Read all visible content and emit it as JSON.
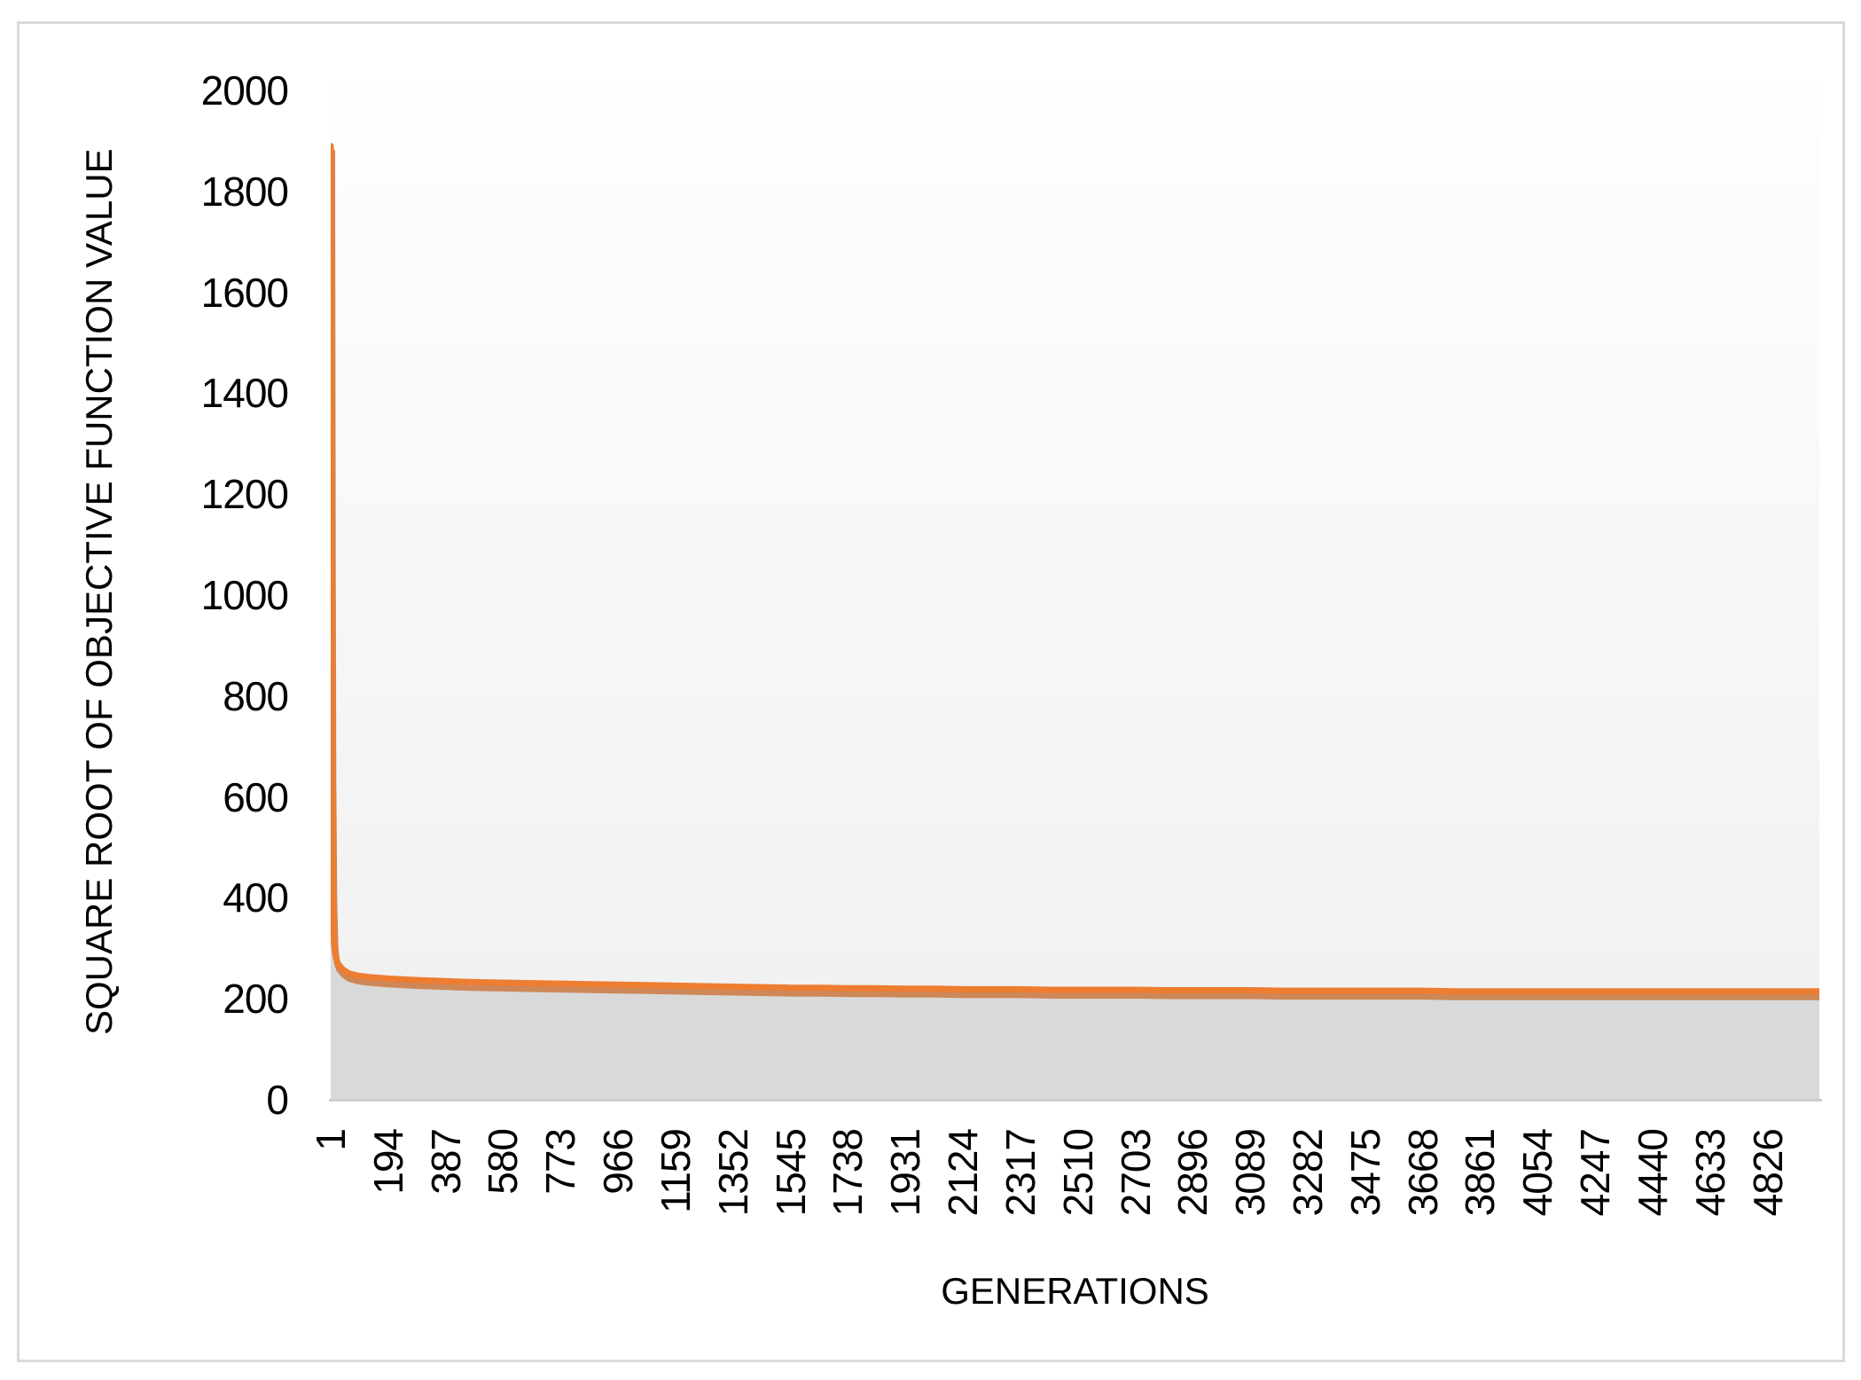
{
  "chart_data": {
    "type": "line",
    "title": "",
    "xlabel": "GENERATIONS",
    "ylabel": "SQUARE ROOT OF OBJECTIVE FUNCTION VALUE",
    "xlim": [
      1,
      5000
    ],
    "ylim": [
      0,
      2000
    ],
    "grid": false,
    "legend_position": "none",
    "x_ticks": [
      1,
      194,
      387,
      580,
      773,
      966,
      1159,
      1352,
      1545,
      1738,
      1931,
      2124,
      2317,
      2510,
      2703,
      2896,
      3089,
      3282,
      3475,
      3668,
      3861,
      4054,
      4247,
      4440,
      4633,
      4826
    ],
    "y_ticks": [
      0,
      200,
      400,
      600,
      800,
      1000,
      1200,
      1400,
      1600,
      1800,
      2000
    ],
    "series": [
      {
        "name": "square-root-of-objective-function-value",
        "style": "line-with-gray-area-fill-and-drop-shadow",
        "points": [
          [
            1,
            1890
          ],
          [
            3,
            1100
          ],
          [
            5,
            650
          ],
          [
            8,
            400
          ],
          [
            12,
            310
          ],
          [
            18,
            282
          ],
          [
            25,
            270
          ],
          [
            40,
            259
          ],
          [
            60,
            251
          ],
          [
            90,
            246
          ],
          [
            130,
            243
          ],
          [
            194,
            240
          ],
          [
            290,
            237
          ],
          [
            387,
            235
          ],
          [
            480,
            233
          ],
          [
            580,
            232
          ],
          [
            680,
            231
          ],
          [
            773,
            230
          ],
          [
            870,
            229
          ],
          [
            966,
            228
          ],
          [
            1060,
            227
          ],
          [
            1159,
            226
          ],
          [
            1255,
            225
          ],
          [
            1352,
            224
          ],
          [
            1450,
            223
          ],
          [
            1545,
            222
          ],
          [
            1640,
            222
          ],
          [
            1738,
            221
          ],
          [
            1830,
            221
          ],
          [
            1931,
            220
          ],
          [
            2030,
            220
          ],
          [
            2124,
            219
          ],
          [
            2220,
            219
          ],
          [
            2317,
            219
          ],
          [
            2410,
            218
          ],
          [
            2510,
            218
          ],
          [
            2600,
            218
          ],
          [
            2703,
            218
          ],
          [
            2800,
            217
          ],
          [
            2896,
            217
          ],
          [
            3000,
            217
          ],
          [
            3089,
            217
          ],
          [
            3200,
            216
          ],
          [
            3282,
            216
          ],
          [
            3400,
            216
          ],
          [
            3475,
            216
          ],
          [
            3570,
            216
          ],
          [
            3668,
            216
          ],
          [
            3770,
            215
          ],
          [
            3861,
            215
          ],
          [
            3960,
            215
          ],
          [
            4054,
            215
          ],
          [
            4150,
            215
          ],
          [
            4247,
            215
          ],
          [
            4340,
            215
          ],
          [
            4440,
            215
          ],
          [
            4540,
            215
          ],
          [
            4633,
            215
          ],
          [
            4730,
            215
          ],
          [
            4826,
            215
          ],
          [
            4920,
            215
          ],
          [
            5000,
            215
          ]
        ]
      }
    ]
  },
  "colors": {
    "line": "#ED7D31",
    "line_shadow": "#CE8757",
    "area_fill": "#D9D9D9",
    "axis_line": "#CDCDCD",
    "chart_border": "#D9D9D9",
    "plot_bg_top": "#FEFEFE",
    "plot_bg_bottom": "#EFEFEF",
    "text": "#000000"
  }
}
